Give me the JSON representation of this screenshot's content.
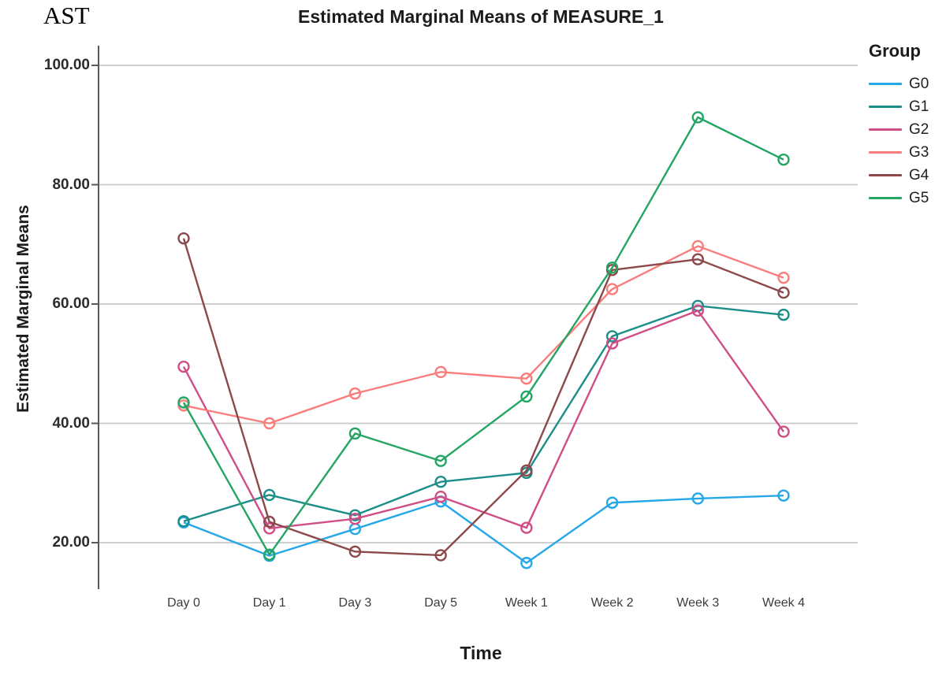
{
  "annotation": "AST",
  "chart": {
    "title": "Estimated Marginal Means of MEASURE_1",
    "y_axis_title": "Estimated Marginal Means",
    "x_axis_title": "Time",
    "legend_title": "Group",
    "y_ticks": [
      "100.00",
      "80.00",
      "60.00",
      "40.00",
      "20.00"
    ]
  },
  "chart_data": {
    "type": "line",
    "title": "Estimated Marginal Means of MEASURE_1",
    "xlabel": "Time",
    "ylabel": "Estimated Marginal Means",
    "legend_title": "Group",
    "legend_position": "right",
    "grid": "horizontal-only",
    "marker": "open-circle",
    "ylim": [
      12,
      103
    ],
    "y_tick_values": [
      100,
      80,
      60,
      40,
      20
    ],
    "categories": [
      "Day 0",
      "Day 1",
      "Day 3",
      "Day 5",
      "Week 1",
      "Week 2",
      "Week 3",
      "Week 4"
    ],
    "series": [
      {
        "name": "G0",
        "color": "#25A7E8",
        "values": [
          23.4,
          17.8,
          22.3,
          26.9,
          16.6,
          26.7,
          27.4,
          27.9
        ]
      },
      {
        "name": "G1",
        "color": "#1C8E8A",
        "values": [
          23.6,
          28.0,
          24.6,
          30.2,
          31.7,
          54.6,
          59.7,
          58.2
        ]
      },
      {
        "name": "G2",
        "color": "#CF4E86",
        "values": [
          49.5,
          22.4,
          24.0,
          27.7,
          22.5,
          53.4,
          58.9,
          38.6
        ]
      },
      {
        "name": "G3",
        "color": "#F97D7B",
        "values": [
          43.0,
          40.0,
          45.0,
          48.6,
          47.5,
          62.5,
          69.7,
          64.4
        ]
      },
      {
        "name": "G4",
        "color": "#8C494B",
        "values": [
          71.0,
          23.5,
          18.5,
          17.9,
          32.1,
          65.7,
          67.5,
          61.9
        ]
      },
      {
        "name": "G5",
        "color": "#24A563",
        "values": [
          43.5,
          18.0,
          38.3,
          33.7,
          44.5,
          66.1,
          91.3,
          84.2
        ]
      }
    ],
    "style": {
      "gridline_color": "#C9C9C9",
      "axis_color": "#595959",
      "background": "#FFFFFF"
    }
  }
}
